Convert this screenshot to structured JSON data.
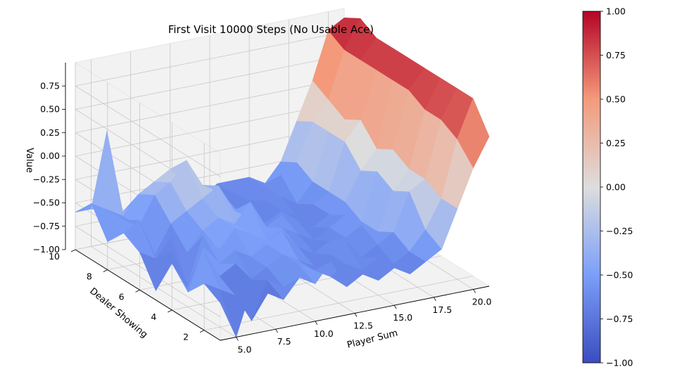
{
  "chart_data": {
    "type": "surface",
    "title": "First Visit 10000 Steps (No Usable Ace)",
    "xlabel": "Player Sum",
    "ylabel": "Dealer Showing",
    "zlabel": "Value",
    "x": [
      4,
      5,
      6,
      7,
      8,
      9,
      10,
      11,
      12,
      13,
      14,
      15,
      16,
      17,
      18,
      19,
      20,
      21
    ],
    "y": [
      1,
      2,
      3,
      4,
      5,
      6,
      7,
      8,
      9,
      10
    ],
    "xlim": [
      4,
      21
    ],
    "ylim": [
      1,
      10
    ],
    "zlim": [
      -1.0,
      1.0
    ],
    "x_ticks": [
      "5.0",
      "7.5",
      "10.0",
      "12.5",
      "15.0",
      "17.5",
      "20.0"
    ],
    "y_ticks": [
      "2",
      "4",
      "6",
      "8",
      "10"
    ],
    "z_ticks": [
      "−1.00",
      "−0.75",
      "−0.50",
      "−0.25",
      "0.00",
      "0.25",
      "0.50",
      "0.75"
    ],
    "colorbar_ticks": [
      "−1.00",
      "−0.75",
      "−0.50",
      "−0.25",
      "0.00",
      "0.25",
      "0.50",
      "0.75",
      "1.00"
    ],
    "colormap": "coolwarm",
    "colormap_low": "#3b4cc0",
    "colormap_mid": "#dddddd",
    "colormap_high": "#b40426",
    "grid": true,
    "values": [
      [
        -0.6,
        -1.0,
        -0.5,
        -0.6,
        -0.7,
        -0.5,
        -0.6,
        -0.4,
        -0.7,
        -0.6,
        -0.7,
        -0.6,
        -0.7,
        -0.6,
        -0.5,
        -0.1,
        0.3,
        0.6
      ],
      [
        -0.5,
        -0.6,
        -0.7,
        -1.0,
        -0.6,
        -0.7,
        -0.5,
        -0.6,
        -0.7,
        -0.6,
        -0.7,
        -0.6,
        -0.7,
        -0.6,
        -0.4,
        -0.1,
        0.5,
        0.9
      ],
      [
        -0.7,
        -0.3,
        -0.6,
        -0.5,
        -0.7,
        -0.6,
        -0.5,
        -0.6,
        -0.7,
        -0.6,
        -0.5,
        -0.7,
        -0.6,
        -0.5,
        -0.1,
        0.0,
        0.6,
        0.9
      ],
      [
        -0.5,
        -0.8,
        -0.4,
        -0.6,
        -0.5,
        -0.6,
        -0.5,
        -0.4,
        -0.6,
        -0.7,
        -0.6,
        -0.6,
        -0.5,
        -0.6,
        -0.2,
        0.0,
        0.6,
        0.9
      ],
      [
        -0.9,
        -0.5,
        -0.9,
        -0.4,
        -0.6,
        -0.4,
        -0.5,
        -0.6,
        -0.5,
        -0.6,
        -0.7,
        -0.6,
        -0.5,
        -0.6,
        -0.1,
        0.1,
        0.7,
        0.9
      ],
      [
        -0.6,
        -0.7,
        -0.5,
        -0.7,
        -0.5,
        -0.4,
        -0.5,
        -0.3,
        -0.6,
        -0.5,
        -0.6,
        -0.7,
        -0.6,
        -0.5,
        -0.2,
        0.0,
        0.7,
        0.9
      ],
      [
        -0.5,
        -0.4,
        -0.8,
        -0.5,
        -0.4,
        -0.3,
        -0.2,
        -0.5,
        -0.6,
        -0.7,
        -0.6,
        -0.7,
        -0.6,
        -0.5,
        0.0,
        0.2,
        0.7,
        0.9
      ],
      [
        -0.7,
        -0.5,
        -0.6,
        -0.3,
        -0.2,
        0.0,
        -0.3,
        -0.4,
        -0.6,
        -0.7,
        -0.6,
        -0.6,
        -0.7,
        -0.5,
        0.0,
        0.1,
        0.7,
        0.9
      ],
      [
        -0.4,
        -0.5,
        -0.6,
        -0.4,
        -0.3,
        -0.2,
        -0.4,
        -0.6,
        -0.7,
        -0.6,
        -0.7,
        -0.6,
        -0.5,
        -0.4,
        0.0,
        0.2,
        0.7,
        1.0
      ],
      [
        -0.6,
        -0.6,
        0.2,
        -0.7,
        -0.6,
        -0.6,
        -0.5,
        -0.6,
        -0.7,
        -0.6,
        -0.6,
        -0.6,
        -0.7,
        -0.5,
        -0.1,
        0.3,
        0.8,
        0.9
      ]
    ]
  }
}
